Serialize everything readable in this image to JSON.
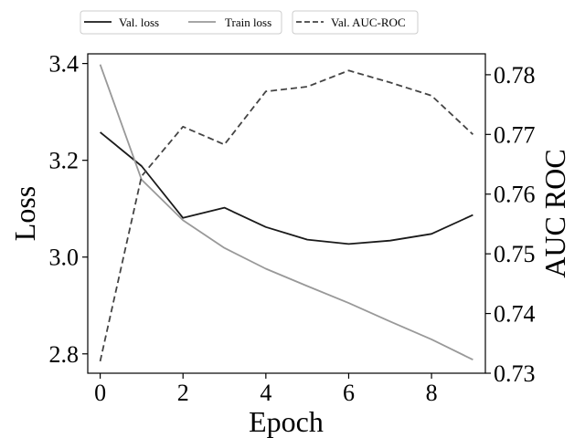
{
  "chart_data": {
    "type": "line",
    "x": [
      0,
      1,
      2,
      3,
      4,
      5,
      6,
      7,
      8,
      9
    ],
    "xlabel": "Epoch",
    "ylabel_left": "Loss",
    "ylabel_right": "AUC ROC",
    "xlim": [
      -0.3,
      9.3
    ],
    "ylim_left": [
      2.76,
      3.42
    ],
    "ylim_right": [
      0.73,
      0.7835
    ],
    "xticks": [
      0,
      2,
      4,
      6,
      8
    ],
    "yticks_left": [
      2.8,
      3.0,
      3.2,
      3.4
    ],
    "yticks_right": [
      0.73,
      0.74,
      0.75,
      0.76,
      0.77,
      0.78
    ],
    "xtick_labels": [
      "0",
      "2",
      "4",
      "6",
      "8"
    ],
    "ytick_labels_left": [
      "2.8",
      "3.0",
      "3.2",
      "3.4"
    ],
    "ytick_labels_right": [
      "0.73",
      "0.74",
      "0.75",
      "0.76",
      "0.77",
      "0.78"
    ],
    "legend_placement": "above-plot",
    "series": [
      {
        "name": "Val. loss",
        "axis": "left",
        "color": "#1a1a1a",
        "style": "solid",
        "values": [
          3.258,
          3.188,
          3.081,
          3.102,
          3.062,
          3.036,
          3.027,
          3.034,
          3.048,
          3.087
        ]
      },
      {
        "name": "Train loss",
        "axis": "left",
        "color": "#999999",
        "style": "solid",
        "values": [
          3.398,
          3.16,
          3.076,
          3.019,
          2.976,
          2.94,
          2.905,
          2.867,
          2.83,
          2.788
        ]
      },
      {
        "name": "Val. AUC-ROC",
        "axis": "right",
        "color": "#444444",
        "style": "dashed",
        "values": [
          0.732,
          0.763,
          0.7713,
          0.7683,
          0.7772,
          0.778,
          0.7807,
          0.7787,
          0.7765,
          0.77
        ]
      }
    ]
  }
}
